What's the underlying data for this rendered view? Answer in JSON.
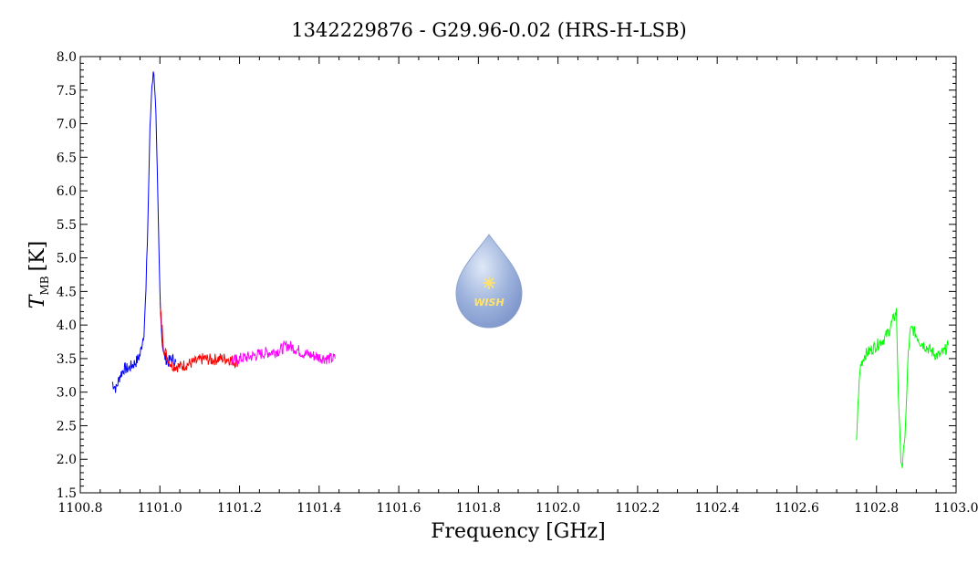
{
  "chart_data": {
    "type": "line",
    "title": "1342229876 - G29.96-0.02 (HRS-H-LSB)",
    "xlabel": "Frequency [GHz]",
    "ylabel_main": "T",
    "ylabel_sub": "MB",
    "ylabel_unit": "[K]",
    "xlim": [
      1100.8,
      1103.0
    ],
    "ylim": [
      1.5,
      8.0
    ],
    "x_ticks": [
      "1100.8",
      "1101.0",
      "1101.2",
      "1101.4",
      "1101.6",
      "1101.8",
      "1102.0",
      "1102.2",
      "1102.4",
      "1102.6",
      "1102.8",
      "1103.0"
    ],
    "y_ticks": [
      "1.5",
      "2.0",
      "2.5",
      "3.0",
      "3.5",
      "4.0",
      "4.5",
      "5.0",
      "5.5",
      "6.0",
      "6.5",
      "7.0",
      "7.5",
      "8.0"
    ],
    "grid": false,
    "series": [
      {
        "color": "#0000ff",
        "x": [
          1100.88,
          1100.89,
          1100.9,
          1100.91,
          1100.92,
          1100.93,
          1100.94,
          1100.95,
          1100.96,
          1100.965,
          1100.97,
          1100.975,
          1100.98,
          1100.985,
          1100.99,
          1100.995,
          1101.0,
          1101.005,
          1101.01,
          1101.02,
          1101.03,
          1101.04
        ],
        "y": [
          3.15,
          3.05,
          3.25,
          3.35,
          3.35,
          3.4,
          3.45,
          3.55,
          3.9,
          4.5,
          5.6,
          6.9,
          7.6,
          7.8,
          7.1,
          5.8,
          4.5,
          3.8,
          3.55,
          3.45,
          3.5,
          3.45
        ]
      },
      {
        "color": "#ff0000",
        "x": [
          1101.0,
          1101.01,
          1101.02,
          1101.03,
          1101.05,
          1101.07,
          1101.09,
          1101.11,
          1101.13,
          1101.15,
          1101.17,
          1101.19,
          1101.2
        ],
        "y": [
          4.3,
          3.65,
          3.5,
          3.4,
          3.38,
          3.42,
          3.45,
          3.5,
          3.48,
          3.5,
          3.5,
          3.45,
          3.48
        ]
      },
      {
        "color": "#ff00ff",
        "x": [
          1101.18,
          1101.2,
          1101.22,
          1101.24,
          1101.26,
          1101.28,
          1101.3,
          1101.32,
          1101.34,
          1101.36,
          1101.38,
          1101.4,
          1101.42,
          1101.44
        ],
        "y": [
          3.45,
          3.5,
          3.52,
          3.55,
          3.58,
          3.6,
          3.62,
          3.7,
          3.65,
          3.58,
          3.55,
          3.52,
          3.5,
          3.5
        ]
      },
      {
        "color": "#00ff00",
        "x": [
          1102.75,
          1102.755,
          1102.76,
          1102.77,
          1102.78,
          1102.79,
          1102.8,
          1102.81,
          1102.82,
          1102.83,
          1102.84,
          1102.85,
          1102.855,
          1102.86,
          1102.865,
          1102.87,
          1102.875,
          1102.88,
          1102.885,
          1102.89,
          1102.9,
          1102.91,
          1102.92,
          1102.93,
          1102.94,
          1102.95,
          1102.96,
          1102.97,
          1102.98
        ],
        "y": [
          2.3,
          3.0,
          3.4,
          3.55,
          3.6,
          3.65,
          3.7,
          3.75,
          3.8,
          3.9,
          4.05,
          4.2,
          3.0,
          2.1,
          1.9,
          2.2,
          2.8,
          3.6,
          3.9,
          3.95,
          3.85,
          3.75,
          3.7,
          3.65,
          3.6,
          3.55,
          3.55,
          3.6,
          3.7
        ]
      }
    ],
    "logo": {
      "label": "WISH",
      "colors": [
        "#9db3dc",
        "#7f96cc",
        "#ffe36a"
      ]
    }
  }
}
